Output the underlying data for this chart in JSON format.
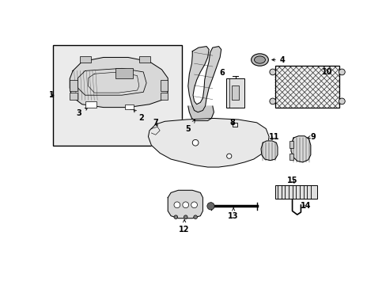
{
  "background_color": "#ffffff",
  "line_color": "#000000",
  "text_color": "#000000",
  "fig_width": 4.89,
  "fig_height": 3.6,
  "dpi": 100,
  "lw": 0.7
}
